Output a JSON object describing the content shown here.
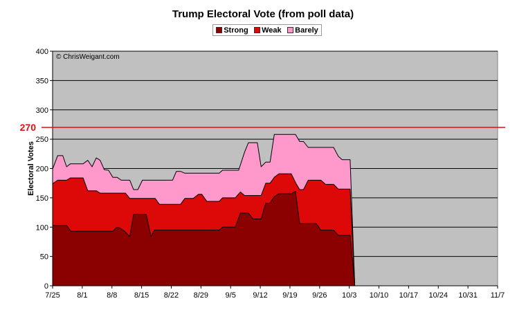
{
  "chart_data": {
    "type": "area",
    "stacked": true,
    "title": "Trump Electoral Vote (from poll data)",
    "ylabel": "Electoral Votes",
    "xlabel": "",
    "watermark": "© ChrisWeigant.com",
    "ylim": [
      0,
      400
    ],
    "yticks": [
      0,
      50,
      100,
      150,
      200,
      250,
      300,
      350,
      400
    ],
    "xlim_days": [
      0,
      105
    ],
    "xtick_labels": [
      "7/25",
      "8/1",
      "8/8",
      "8/15",
      "8/22",
      "8/29",
      "9/5",
      "9/12",
      "9/19",
      "9/26",
      "10/3",
      "10/10",
      "10/17",
      "10/24",
      "10/31",
      "11/7"
    ],
    "grid": true,
    "legend_position": "top-center",
    "reference_line": {
      "value": 270,
      "label": "270",
      "color": "#dd1111"
    },
    "x_unit": "days since 7/25",
    "series": [
      {
        "name": "Barely",
        "color": "#ff99cc",
        "note": "cumulative top (Strong+Weak+Barely)",
        "points": [
          [
            0,
            199
          ],
          [
            1.2,
            222
          ],
          [
            2.4,
            222
          ],
          [
            3.3,
            203
          ],
          [
            4.2,
            208
          ],
          [
            7.2,
            208
          ],
          [
            8.3,
            214
          ],
          [
            9.3,
            203
          ],
          [
            10.3,
            218
          ],
          [
            11.2,
            214
          ],
          [
            12.2,
            198
          ],
          [
            13.2,
            197
          ],
          [
            14.2,
            185
          ],
          [
            15.2,
            185
          ],
          [
            16.2,
            180
          ],
          [
            18.2,
            180
          ],
          [
            19.1,
            164
          ],
          [
            20.1,
            164
          ],
          [
            21.2,
            180
          ],
          [
            28.3,
            180
          ],
          [
            29.2,
            195
          ],
          [
            30.2,
            195
          ],
          [
            31.2,
            192
          ],
          [
            39.3,
            192
          ],
          [
            40.1,
            197
          ],
          [
            43.9,
            197
          ],
          [
            45.3,
            228
          ],
          [
            46.2,
            244
          ],
          [
            48.3,
            244
          ],
          [
            49.2,
            203
          ],
          [
            50.3,
            211
          ],
          [
            51.3,
            211
          ],
          [
            52.3,
            258
          ],
          [
            57.3,
            258
          ],
          [
            58.3,
            246
          ],
          [
            59.2,
            246
          ],
          [
            60.3,
            236
          ],
          [
            66.3,
            236
          ],
          [
            67.4,
            221
          ],
          [
            68.3,
            215
          ],
          [
            70.2,
            215
          ],
          [
            71.3,
            0
          ]
        ]
      },
      {
        "name": "Weak",
        "color": "#dd0808",
        "note": "cumulative top (Strong+Weak)",
        "points": [
          [
            0,
            174
          ],
          [
            1.2,
            180
          ],
          [
            3.3,
            180
          ],
          [
            4.2,
            184
          ],
          [
            7.2,
            184
          ],
          [
            8.3,
            162
          ],
          [
            10.3,
            162
          ],
          [
            11.2,
            158
          ],
          [
            17.2,
            158
          ],
          [
            18.2,
            149
          ],
          [
            24.2,
            149
          ],
          [
            25.2,
            139
          ],
          [
            30.2,
            139
          ],
          [
            31.2,
            149
          ],
          [
            33.2,
            149
          ],
          [
            34.4,
            156
          ],
          [
            35.2,
            156
          ],
          [
            36.4,
            144
          ],
          [
            39.3,
            144
          ],
          [
            40.1,
            150
          ],
          [
            43.1,
            150
          ],
          [
            44.3,
            160
          ],
          [
            45.3,
            154
          ],
          [
            49.2,
            154
          ],
          [
            50.3,
            175
          ],
          [
            51.3,
            175
          ],
          [
            52.3,
            185
          ],
          [
            53.4,
            191
          ],
          [
            56.3,
            191
          ],
          [
            57.4,
            175
          ],
          [
            58.3,
            164
          ],
          [
            59.2,
            164
          ],
          [
            60.3,
            180
          ],
          [
            63.3,
            180
          ],
          [
            64.4,
            173
          ],
          [
            66.3,
            173
          ],
          [
            67.4,
            165
          ],
          [
            70.2,
            165
          ],
          [
            71.3,
            0
          ]
        ]
      },
      {
        "name": "Strong",
        "color": "#8b0000",
        "points": [
          [
            0,
            103
          ],
          [
            3.3,
            103
          ],
          [
            4.3,
            93
          ],
          [
            14.2,
            93
          ],
          [
            15,
            99
          ],
          [
            15.8,
            99
          ],
          [
            17,
            93
          ],
          [
            18.2,
            84
          ],
          [
            19.1,
            122
          ],
          [
            22.1,
            122
          ],
          [
            23.2,
            84
          ],
          [
            24,
            95
          ],
          [
            39.3,
            95
          ],
          [
            40.1,
            100
          ],
          [
            43.1,
            100
          ],
          [
            44.3,
            124
          ],
          [
            46.2,
            124
          ],
          [
            47.3,
            114
          ],
          [
            49.2,
            114
          ],
          [
            50.3,
            141
          ],
          [
            51.3,
            141
          ],
          [
            52.3,
            152
          ],
          [
            53.4,
            157
          ],
          [
            56.3,
            157
          ],
          [
            57.3,
            161
          ],
          [
            58.3,
            106
          ],
          [
            62.2,
            106
          ],
          [
            63.3,
            95
          ],
          [
            66.3,
            95
          ],
          [
            67.4,
            86
          ],
          [
            70.2,
            86
          ],
          [
            71.3,
            0
          ]
        ]
      }
    ]
  }
}
